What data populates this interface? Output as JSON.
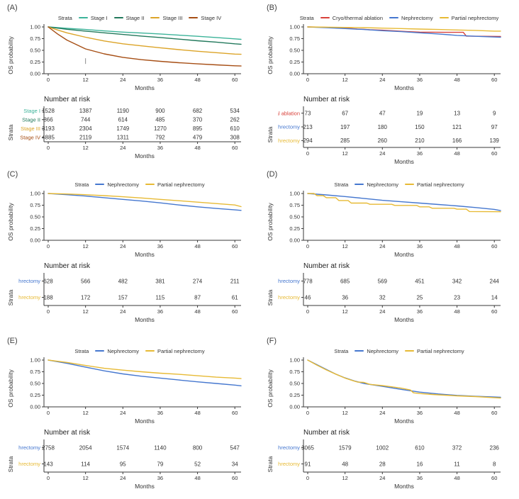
{
  "labels": {
    "strata": "Strata"
  },
  "chart_data": [
    {
      "type": "line",
      "panel_label": "(A)",
      "legend_title": "Strata",
      "xlabel": "Months",
      "ylabel": "OS probability",
      "risk_title": "Number at risk",
      "xlim": [
        0,
        62
      ],
      "ylim": [
        0,
        1
      ],
      "xticks": [
        0,
        12,
        24,
        36,
        48,
        60
      ],
      "yticks": [
        0,
        0.25,
        0.5,
        0.75,
        1
      ],
      "ytick_labels": [
        "0.00",
        "0.25",
        "0.50",
        "0.75",
        "1.00"
      ],
      "legend_position": "top",
      "grid": false,
      "censor_marks": [
        {
          "x": 12,
          "y": 0.27
        }
      ],
      "series": [
        {
          "name": "Stage I",
          "color": "#3cb399",
          "x": [
            0,
            3,
            6,
            12,
            18,
            24,
            30,
            36,
            42,
            48,
            54,
            60,
            62
          ],
          "y": [
            1.0,
            0.985,
            0.97,
            0.945,
            0.915,
            0.89,
            0.87,
            0.85,
            0.825,
            0.8,
            0.775,
            0.745,
            0.735
          ],
          "number_at_risk": [
            1528,
            1387,
            1190,
            900,
            682,
            534
          ]
        },
        {
          "name": "Stage II",
          "color": "#22795c",
          "x": [
            0,
            3,
            6,
            12,
            18,
            24,
            30,
            36,
            42,
            48,
            54,
            60,
            62
          ],
          "y": [
            1.0,
            0.975,
            0.95,
            0.91,
            0.875,
            0.84,
            0.805,
            0.775,
            0.74,
            0.705,
            0.675,
            0.64,
            0.63
          ],
          "number_at_risk": [
            866,
            744,
            614,
            485,
            370,
            262
          ]
        },
        {
          "name": "Stage III",
          "color": "#dca428",
          "x": [
            0,
            3,
            6,
            12,
            18,
            24,
            30,
            36,
            42,
            48,
            54,
            60,
            62
          ],
          "y": [
            1.0,
            0.935,
            0.875,
            0.78,
            0.7,
            0.64,
            0.595,
            0.555,
            0.515,
            0.48,
            0.45,
            0.42,
            0.415
          ],
          "number_at_risk": [
            3193,
            2304,
            1749,
            1270,
            895,
            610
          ]
        },
        {
          "name": "Stage IV",
          "color": "#a64e14",
          "x": [
            0,
            3,
            6,
            12,
            18,
            24,
            30,
            36,
            42,
            48,
            54,
            60,
            62
          ],
          "y": [
            1.0,
            0.85,
            0.72,
            0.53,
            0.425,
            0.35,
            0.3,
            0.265,
            0.235,
            0.21,
            0.19,
            0.17,
            0.165
          ],
          "number_at_risk": [
            4885,
            2119,
            1311,
            792,
            479,
            308
          ]
        }
      ]
    },
    {
      "type": "line",
      "panel_label": "(B)",
      "legend_title": "Strata",
      "xlabel": "Months",
      "ylabel": "OS probability",
      "risk_title": "Number at risk",
      "xlim": [
        0,
        62
      ],
      "ylim": [
        0,
        1
      ],
      "xticks": [
        0,
        12,
        24,
        36,
        48,
        60
      ],
      "yticks": [
        0,
        0.25,
        0.5,
        0.75,
        1
      ],
      "ytick_labels": [
        "0.00",
        "0.25",
        "0.50",
        "0.75",
        "1.00"
      ],
      "legend_position": "top",
      "grid": false,
      "series": [
        {
          "name": "Cryo/thermal ablation",
          "color": "#d8403a",
          "x": [
            0,
            4,
            8,
            10,
            14,
            16,
            18,
            20,
            24,
            28,
            32,
            36,
            44,
            50,
            51,
            56,
            62
          ],
          "y": [
            1.0,
            0.995,
            0.985,
            0.975,
            0.965,
            0.955,
            0.95,
            0.94,
            0.93,
            0.915,
            0.9,
            0.89,
            0.885,
            0.885,
            0.805,
            0.8,
            0.795
          ],
          "number_at_risk": [
            73,
            67,
            47,
            19,
            13,
            9
          ]
        },
        {
          "name": "Nephrectomy",
          "color": "#4577cf",
          "x": [
            0,
            6,
            12,
            18,
            24,
            30,
            36,
            42,
            48,
            54,
            60,
            62
          ],
          "y": [
            1.0,
            0.985,
            0.965,
            0.945,
            0.92,
            0.9,
            0.875,
            0.85,
            0.82,
            0.8,
            0.785,
            0.78
          ],
          "number_at_risk": [
            213,
            197,
            180,
            150,
            121,
            97
          ]
        },
        {
          "name": "Partial nephrectomy",
          "color": "#e7ba35",
          "x": [
            0,
            6,
            12,
            18,
            24,
            30,
            36,
            42,
            48,
            54,
            60,
            62
          ],
          "y": [
            1.0,
            0.995,
            0.99,
            0.985,
            0.975,
            0.965,
            0.955,
            0.945,
            0.935,
            0.925,
            0.91,
            0.91
          ],
          "number_at_risk": [
            294,
            285,
            260,
            210,
            166,
            139
          ]
        }
      ]
    },
    {
      "type": "line",
      "panel_label": "(C)",
      "legend_title": "Strata",
      "xlabel": "Months",
      "ylabel": "OS probability",
      "risk_title": "Number at risk",
      "xlim": [
        0,
        62
      ],
      "ylim": [
        0,
        1
      ],
      "xticks": [
        0,
        12,
        24,
        36,
        48,
        60
      ],
      "yticks": [
        0,
        0.25,
        0.5,
        0.75,
        1
      ],
      "ytick_labels": [
        "0.00",
        "0.25",
        "0.50",
        "0.75",
        "1.00"
      ],
      "legend_position": "top",
      "grid": false,
      "series": [
        {
          "name": "Nephrectomy",
          "color": "#4577cf",
          "x": [
            0,
            6,
            12,
            18,
            24,
            30,
            36,
            42,
            48,
            54,
            60,
            62
          ],
          "y": [
            1.0,
            0.975,
            0.945,
            0.91,
            0.875,
            0.84,
            0.8,
            0.755,
            0.715,
            0.68,
            0.65,
            0.64
          ],
          "number_at_risk": [
            628,
            566,
            482,
            381,
            274,
            211
          ]
        },
        {
          "name": "Partial nephrectomy",
          "color": "#e7ba35",
          "x": [
            0,
            6,
            12,
            18,
            24,
            30,
            36,
            42,
            48,
            54,
            60,
            62
          ],
          "y": [
            1.0,
            0.99,
            0.975,
            0.955,
            0.93,
            0.905,
            0.875,
            0.845,
            0.815,
            0.785,
            0.755,
            0.72
          ],
          "number_at_risk": [
            188,
            172,
            157,
            115,
            87,
            61
          ]
        }
      ]
    },
    {
      "type": "line",
      "panel_label": "(D)",
      "legend_title": "Strata",
      "xlabel": "Months",
      "ylabel": "OS probability",
      "risk_title": "Number at risk",
      "xlim": [
        0,
        62
      ],
      "ylim": [
        0,
        1
      ],
      "xticks": [
        0,
        12,
        24,
        36,
        48,
        60
      ],
      "yticks": [
        0,
        0.25,
        0.5,
        0.75,
        1
      ],
      "ytick_labels": [
        "0.00",
        "0.25",
        "0.50",
        "0.75",
        "1.00"
      ],
      "legend_position": "top",
      "grid": false,
      "series": [
        {
          "name": "Nephrectomy",
          "color": "#4577cf",
          "x": [
            0,
            6,
            12,
            18,
            24,
            30,
            36,
            42,
            48,
            54,
            60,
            62
          ],
          "y": [
            1.0,
            0.97,
            0.935,
            0.895,
            0.855,
            0.825,
            0.795,
            0.765,
            0.735,
            0.7,
            0.66,
            0.635
          ],
          "number_at_risk": [
            778,
            685,
            569,
            451,
            342,
            244
          ]
        },
        {
          "name": "Partial nephrectomy",
          "color": "#e7ba35",
          "x": [
            0,
            2,
            3,
            5,
            6,
            9,
            10,
            13,
            14,
            19,
            20,
            27,
            28,
            35,
            36,
            39,
            40,
            47,
            48,
            51,
            52,
            62
          ],
          "y": [
            1.0,
            1.0,
            0.955,
            0.955,
            0.91,
            0.91,
            0.85,
            0.85,
            0.795,
            0.795,
            0.77,
            0.77,
            0.745,
            0.745,
            0.715,
            0.715,
            0.685,
            0.685,
            0.665,
            0.665,
            0.615,
            0.61
          ],
          "number_at_risk": [
            46,
            36,
            32,
            25,
            23,
            14
          ]
        }
      ]
    },
    {
      "type": "line",
      "panel_label": "(E)",
      "legend_title": "Strata",
      "xlabel": "Months",
      "ylabel": "OS probability",
      "risk_title": "Number at risk",
      "xlim": [
        0,
        62
      ],
      "ylim": [
        0,
        1
      ],
      "xticks": [
        0,
        12,
        24,
        36,
        48,
        60
      ],
      "yticks": [
        0,
        0.25,
        0.5,
        0.75,
        1
      ],
      "ytick_labels": [
        "0.00",
        "0.25",
        "0.50",
        "0.75",
        "1.00"
      ],
      "legend_position": "top",
      "grid": false,
      "series": [
        {
          "name": "Nephrectomy",
          "color": "#4577cf",
          "x": [
            0,
            6,
            12,
            18,
            24,
            30,
            36,
            42,
            48,
            54,
            60,
            62
          ],
          "y": [
            1.0,
            0.93,
            0.85,
            0.77,
            0.705,
            0.655,
            0.615,
            0.575,
            0.535,
            0.5,
            0.465,
            0.45
          ],
          "number_at_risk": [
            2758,
            2054,
            1574,
            1140,
            800,
            547
          ]
        },
        {
          "name": "Partial nephrectomy",
          "color": "#e7ba35",
          "x": [
            0,
            6,
            12,
            18,
            24,
            30,
            36,
            42,
            48,
            54,
            60,
            62
          ],
          "y": [
            1.0,
            0.95,
            0.885,
            0.825,
            0.785,
            0.75,
            0.72,
            0.695,
            0.665,
            0.635,
            0.615,
            0.605
          ],
          "number_at_risk": [
            143,
            114,
            95,
            79,
            52,
            34
          ]
        }
      ]
    },
    {
      "type": "line",
      "panel_label": "(F)",
      "legend_title": "Strata",
      "xlabel": "Months",
      "ylabel": "OS probability",
      "risk_title": "Number at risk",
      "xlim": [
        0,
        62
      ],
      "ylim": [
        0,
        1
      ],
      "xticks": [
        0,
        12,
        24,
        36,
        48,
        60
      ],
      "yticks": [
        0,
        0.25,
        0.5,
        0.75,
        1
      ],
      "ytick_labels": [
        "0.00",
        "0.25",
        "0.50",
        "0.75",
        "1.00"
      ],
      "legend_position": "top",
      "grid": false,
      "series": [
        {
          "name": "Nephrectomy",
          "color": "#4577cf",
          "x": [
            0,
            3,
            6,
            9,
            12,
            15,
            18,
            24,
            30,
            36,
            42,
            48,
            54,
            60,
            62
          ],
          "y": [
            1.0,
            0.9,
            0.8,
            0.7,
            0.62,
            0.555,
            0.5,
            0.44,
            0.375,
            0.315,
            0.275,
            0.245,
            0.225,
            0.21,
            0.205
          ],
          "number_at_risk": [
            3065,
            1579,
            1002,
            610,
            372,
            236
          ]
        },
        {
          "name": "Partial nephrectomy",
          "color": "#e7ba35",
          "x": [
            0,
            3,
            6,
            9,
            12,
            15,
            16,
            18,
            20,
            24,
            28,
            30,
            33,
            34,
            36,
            40,
            44,
            48,
            54,
            60,
            62
          ],
          "y": [
            1.0,
            0.89,
            0.79,
            0.7,
            0.615,
            0.55,
            0.53,
            0.525,
            0.48,
            0.455,
            0.42,
            0.4,
            0.36,
            0.3,
            0.285,
            0.265,
            0.25,
            0.235,
            0.22,
            0.195,
            0.19
          ],
          "number_at_risk": [
            91,
            48,
            28,
            16,
            11,
            8
          ]
        }
      ]
    }
  ]
}
